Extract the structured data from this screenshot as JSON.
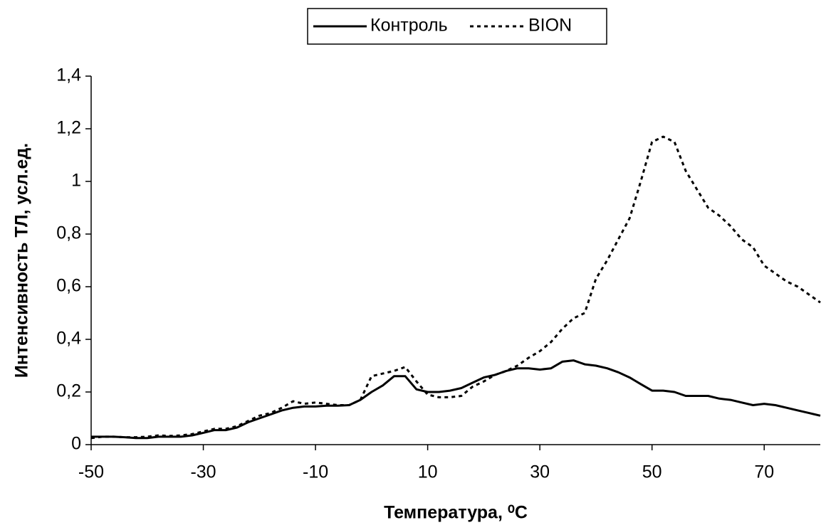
{
  "chart_data": {
    "type": "line",
    "xlabel": "Температура, ⁰C",
    "ylabel": "Интенсивность ТЛ, усл.ед.",
    "x": [
      -50,
      -48,
      -46,
      -44,
      -42,
      -40,
      -38,
      -36,
      -34,
      -32,
      -30,
      -28,
      -26,
      -24,
      -22,
      -20,
      -18,
      -16,
      -14,
      -12,
      -10,
      -8,
      -6,
      -4,
      -2,
      0,
      2,
      4,
      6,
      8,
      10,
      12,
      14,
      16,
      18,
      20,
      22,
      24,
      26,
      28,
      30,
      32,
      34,
      36,
      38,
      40,
      42,
      44,
      46,
      48,
      50,
      52,
      54,
      56,
      58,
      60,
      62,
      64,
      66,
      68,
      70,
      72,
      74,
      76,
      78,
      80
    ],
    "series": [
      {
        "name": "Контроль",
        "color": "#000000",
        "line_style": "solid",
        "values": [
          0.03,
          0.03,
          0.03,
          0.028,
          0.025,
          0.025,
          0.03,
          0.03,
          0.03,
          0.035,
          0.045,
          0.055,
          0.055,
          0.065,
          0.085,
          0.1,
          0.115,
          0.13,
          0.14,
          0.145,
          0.145,
          0.148,
          0.148,
          0.15,
          0.17,
          0.2,
          0.225,
          0.26,
          0.26,
          0.21,
          0.2,
          0.2,
          0.205,
          0.215,
          0.235,
          0.255,
          0.265,
          0.28,
          0.29,
          0.29,
          0.285,
          0.29,
          0.315,
          0.32,
          0.305,
          0.3,
          0.29,
          0.275,
          0.255,
          0.23,
          0.205,
          0.205,
          0.2,
          0.185,
          0.185,
          0.185,
          0.175,
          0.17,
          0.16,
          0.15,
          0.155,
          0.15,
          0.14,
          0.13,
          0.12,
          0.11
        ]
      },
      {
        "name": "BION",
        "color": "#000000",
        "line_style": "dotted",
        "values": [
          0.025,
          0.03,
          0.03,
          0.028,
          0.028,
          0.03,
          0.035,
          0.033,
          0.035,
          0.04,
          0.05,
          0.06,
          0.06,
          0.07,
          0.09,
          0.11,
          0.12,
          0.14,
          0.165,
          0.155,
          0.16,
          0.155,
          0.15,
          0.15,
          0.17,
          0.26,
          0.27,
          0.28,
          0.295,
          0.24,
          0.19,
          0.18,
          0.18,
          0.185,
          0.22,
          0.24,
          0.265,
          0.28,
          0.3,
          0.33,
          0.355,
          0.39,
          0.44,
          0.48,
          0.5,
          0.63,
          0.7,
          0.78,
          0.86,
          1.0,
          1.15,
          1.17,
          1.15,
          1.04,
          0.97,
          0.9,
          0.87,
          0.83,
          0.78,
          0.75,
          0.68,
          0.65,
          0.62,
          0.6,
          0.57,
          0.54
        ]
      }
    ],
    "xlim": [
      -50,
      80
    ],
    "xticks": [
      -50,
      -30,
      -10,
      10,
      30,
      50,
      70
    ],
    "ylim": [
      0,
      1.4
    ],
    "yticks": [
      0,
      {
        "value": 0.2,
        "label": "0,2"
      },
      {
        "value": 0.4,
        "label": "0,4"
      },
      {
        "value": 0.6,
        "label": "0,6"
      },
      {
        "value": 0.8,
        "label": "0,8"
      },
      1,
      {
        "value": 1.2,
        "label": "1,2"
      },
      {
        "value": 1.4,
        "label": "1,4"
      }
    ],
    "grid": false,
    "legend": "top"
  }
}
